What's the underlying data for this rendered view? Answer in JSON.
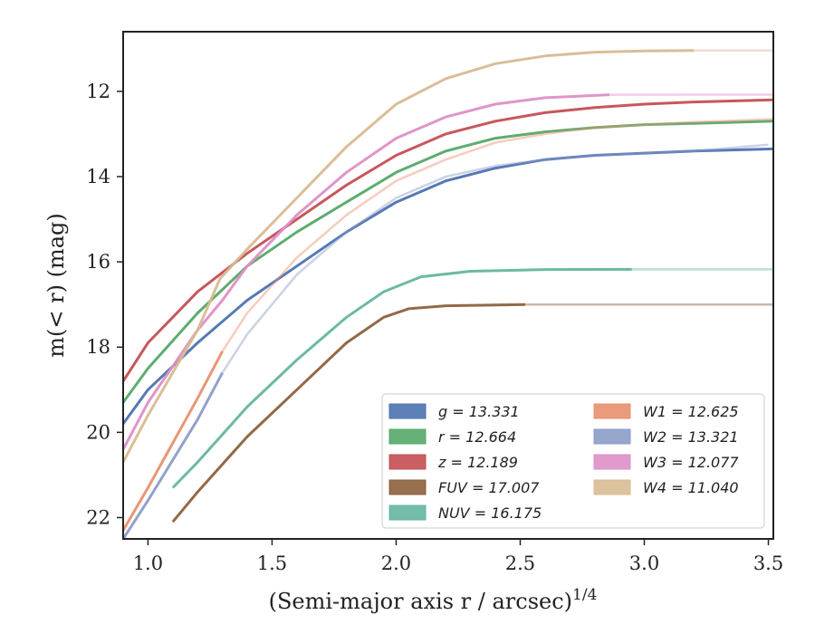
{
  "chart_data": {
    "type": "line",
    "title": "",
    "xlabel": "(Semi-major axis r / arcsec)",
    "xlabel_superscript": "1/4",
    "ylabel": "m(< r) (mag)",
    "xlim": [
      0.9,
      3.52
    ],
    "ylim": [
      22.5,
      10.6
    ],
    "y_inverted": true,
    "xticks": [
      1.0,
      1.5,
      2.0,
      2.5,
      3.0,
      3.5
    ],
    "xtick_labels": [
      "1.0",
      "1.5",
      "2.0",
      "2.5",
      "3.0",
      "3.5"
    ],
    "yticks": [
      12,
      14,
      16,
      18,
      20,
      22
    ],
    "ytick_labels": [
      "12",
      "14",
      "16",
      "18",
      "20",
      "22"
    ],
    "grid": false,
    "legend_position": "lower-right",
    "series": [
      {
        "name": "g",
        "label": "g = 13.331",
        "color": "#4c72b0",
        "total": 13.331,
        "x": [
          0.9,
          1.0,
          1.2,
          1.4,
          1.6,
          1.8,
          2.0,
          2.2,
          2.4,
          2.6,
          2.8,
          3.0,
          3.2,
          3.52
        ],
        "y": [
          19.8,
          19.0,
          17.9,
          16.9,
          16.1,
          15.3,
          14.6,
          14.1,
          13.8,
          13.6,
          13.5,
          13.45,
          13.4,
          13.35
        ],
        "solid_until": 3.52
      },
      {
        "name": "r",
        "label": "r = 12.664",
        "color": "#55a868",
        "total": 12.664,
        "x": [
          0.9,
          1.0,
          1.2,
          1.4,
          1.6,
          1.8,
          2.0,
          2.2,
          2.4,
          2.6,
          2.8,
          3.0,
          3.2,
          3.52
        ],
        "y": [
          19.3,
          18.5,
          17.2,
          16.1,
          15.3,
          14.6,
          13.9,
          13.4,
          13.1,
          12.95,
          12.85,
          12.78,
          12.75,
          12.7
        ],
        "solid_until": 3.52
      },
      {
        "name": "z",
        "label": "z = 12.189",
        "color": "#c44e52",
        "total": 12.189,
        "x": [
          0.9,
          1.0,
          1.2,
          1.4,
          1.6,
          1.8,
          2.0,
          2.2,
          2.4,
          2.6,
          2.8,
          3.0,
          3.2,
          3.52
        ],
        "y": [
          18.8,
          17.9,
          16.7,
          15.8,
          15.0,
          14.2,
          13.5,
          13.0,
          12.7,
          12.5,
          12.38,
          12.3,
          12.25,
          12.2
        ],
        "solid_until": 3.52
      },
      {
        "name": "FUV",
        "label": "FUV = 17.007",
        "color": "#8c613c",
        "total": 17.007,
        "x": [
          1.1,
          1.2,
          1.4,
          1.6,
          1.8,
          1.95,
          2.05,
          2.2,
          2.52,
          3.0,
          3.52
        ],
        "y": [
          22.1,
          21.4,
          20.1,
          19.0,
          17.9,
          17.3,
          17.1,
          17.03,
          17.0,
          17.0,
          17.0
        ],
        "solid_until": 2.52
      },
      {
        "name": "NUV",
        "label": "NUV = 16.175",
        "color": "#64b5a0",
        "total": 16.175,
        "x": [
          1.1,
          1.2,
          1.4,
          1.6,
          1.8,
          1.95,
          2.1,
          2.3,
          2.6,
          2.95,
          3.52
        ],
        "y": [
          21.3,
          20.7,
          19.4,
          18.3,
          17.3,
          16.7,
          16.35,
          16.22,
          16.18,
          16.175,
          16.175
        ],
        "solid_until": 2.95
      },
      {
        "name": "W1",
        "label": "W1 = 12.625",
        "color": "#e8906e",
        "total": 12.625,
        "x": [
          0.9,
          1.0,
          1.2,
          1.3,
          1.4,
          1.6,
          1.8,
          2.0,
          2.2,
          2.4,
          2.6,
          2.8,
          3.0,
          3.2,
          3.52
        ],
        "y": [
          22.3,
          21.3,
          19.2,
          18.1,
          17.2,
          15.9,
          14.9,
          14.1,
          13.6,
          13.2,
          13.0,
          12.85,
          12.78,
          12.72,
          12.65
        ],
        "solid_until": 1.3
      },
      {
        "name": "W2",
        "label": "W2 = 13.321",
        "color": "#8c9cc8",
        "total": 13.321,
        "x": [
          0.9,
          1.0,
          1.2,
          1.3,
          1.4,
          1.6,
          1.8,
          2.0,
          2.2,
          2.4,
          2.6,
          2.8,
          3.0,
          3.2,
          3.5
        ],
        "y": [
          22.5,
          21.6,
          19.7,
          18.6,
          17.7,
          16.3,
          15.3,
          14.5,
          14.0,
          13.75,
          13.6,
          13.5,
          13.45,
          13.4,
          13.25
        ],
        "solid_until": 1.3
      },
      {
        "name": "W3",
        "label": "W3 = 12.077",
        "color": "#dd8fc5",
        "total": 12.077,
        "x": [
          0.9,
          1.0,
          1.2,
          1.3,
          1.4,
          1.6,
          1.8,
          2.0,
          2.2,
          2.4,
          2.6,
          2.86,
          3.2,
          3.52
        ],
        "y": [
          20.4,
          19.3,
          17.6,
          16.9,
          16.1,
          14.9,
          13.9,
          13.1,
          12.6,
          12.3,
          12.15,
          12.08,
          12.077,
          12.077
        ],
        "solid_until": 2.86
      },
      {
        "name": "W4",
        "label": "W4 = 11.040",
        "color": "#d8bb92",
        "total": 11.04,
        "x": [
          0.9,
          1.0,
          1.2,
          1.29,
          1.4,
          1.6,
          1.8,
          2.0,
          2.2,
          2.4,
          2.6,
          2.8,
          3.0,
          3.2,
          3.52
        ],
        "y": [
          20.7,
          19.6,
          17.6,
          16.4,
          15.7,
          14.5,
          13.3,
          12.3,
          11.7,
          11.35,
          11.17,
          11.08,
          11.05,
          11.04,
          11.04
        ],
        "solid_until": 3.2
      }
    ]
  }
}
